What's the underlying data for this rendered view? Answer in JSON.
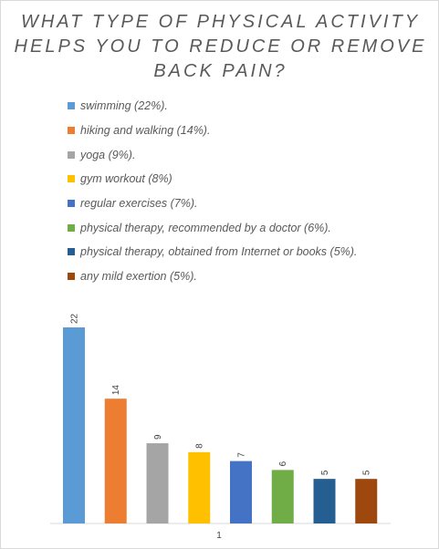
{
  "chart_data": {
    "type": "bar",
    "title": "WHAT TYPE OF PHYSICAL ACTIVITY HELPS YOU TO REDUCE OR REMOVE BACK PAIN?",
    "title_lines": [
      "WHAT TYPE OF PHYSICAL ACTIVITY",
      "HELPS YOU TO REDUCE OR REMOVE",
      "BACK PAIN?"
    ],
    "categories": [
      "1"
    ],
    "xlabel": "",
    "ylabel": "",
    "ylim": [
      0,
      22
    ],
    "grid": false,
    "legend_position": "top",
    "series": [
      {
        "name": "swimming (22%).",
        "values": [
          22
        ],
        "color": "#5b9bd5"
      },
      {
        "name": "hiking and walking (14%).",
        "values": [
          14
        ],
        "color": "#ed7d31"
      },
      {
        "name": "yoga (9%).",
        "values": [
          9
        ],
        "color": "#a5a5a5"
      },
      {
        "name": "gym workout (8%)",
        "values": [
          8
        ],
        "color": "#ffc000"
      },
      {
        "name": "regular exercises (7%).",
        "values": [
          7
        ],
        "color": "#4472c4"
      },
      {
        "name": "physical therapy, recommended by a doctor (6%).",
        "values": [
          6
        ],
        "color": "#70ad47"
      },
      {
        "name": "physical therapy, obtained from Internet or books (5%).",
        "values": [
          5
        ],
        "color": "#255e91"
      },
      {
        "name": "any mild exertion (5%).",
        "values": [
          5
        ],
        "color": "#9e480e"
      }
    ]
  }
}
